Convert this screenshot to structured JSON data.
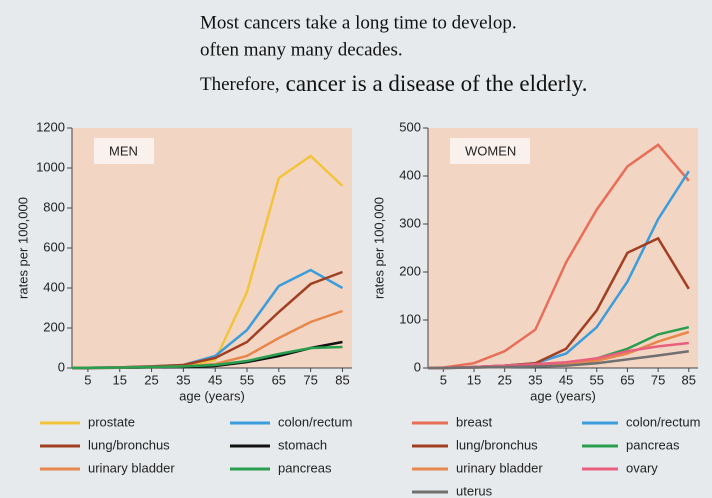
{
  "header": {
    "lines": [
      "Most cancers take a long time to develop.",
      "often many many decades."
    ],
    "therefore": "Therefore,",
    "emphasis": "cancer is a disease of the elderly."
  },
  "chart_data": [
    {
      "type": "line",
      "panel_label": "MEN",
      "xlabel": "age (years)",
      "ylabel": "rates per 100,000",
      "x": [
        0,
        5,
        15,
        25,
        35,
        45,
        55,
        65,
        75,
        85
      ],
      "xlim": [
        0,
        88
      ],
      "xticks": [
        5,
        15,
        25,
        35,
        45,
        55,
        65,
        75,
        85
      ],
      "ylim": [
        0,
        1200
      ],
      "yticks": [
        0,
        200,
        400,
        600,
        800,
        1000,
        1200
      ],
      "legend": "bottom",
      "series": [
        {
          "name": "prostate",
          "color": "#f2c43c",
          "values": [
            0,
            0,
            2,
            5,
            10,
            40,
            380,
            950,
            1060,
            910
          ]
        },
        {
          "name": "colon/rectum",
          "color": "#3b9ddb",
          "values": [
            0,
            1,
            3,
            8,
            15,
            60,
            190,
            410,
            490,
            400
          ]
        },
        {
          "name": "lung/bronchus",
          "color": "#a13f22",
          "values": [
            0,
            1,
            3,
            8,
            15,
            50,
            130,
            280,
            420,
            480
          ]
        },
        {
          "name": "stomach",
          "color": "#111111",
          "values": [
            0,
            0,
            1,
            3,
            5,
            10,
            30,
            60,
            100,
            130
          ]
        },
        {
          "name": "urinary bladder",
          "color": "#e8874b",
          "values": [
            0,
            1,
            2,
            5,
            8,
            20,
            60,
            150,
            230,
            285
          ]
        },
        {
          "name": "pancreas",
          "color": "#2a9e4f",
          "values": [
            0,
            1,
            2,
            5,
            8,
            15,
            35,
            70,
            100,
            105
          ]
        }
      ]
    },
    {
      "type": "line",
      "panel_label": "WOMEN",
      "xlabel": "age (years)",
      "ylabel": "rates per 100,000",
      "x": [
        0,
        5,
        15,
        25,
        35,
        45,
        55,
        65,
        75,
        85
      ],
      "xlim": [
        0,
        88
      ],
      "xticks": [
        5,
        15,
        25,
        35,
        45,
        55,
        65,
        75,
        85
      ],
      "ylim": [
        0,
        500
      ],
      "yticks": [
        0,
        100,
        200,
        300,
        400,
        500
      ],
      "legend": "bottom",
      "series": [
        {
          "name": "breast",
          "color": "#e86e58",
          "values": [
            0,
            1,
            10,
            35,
            80,
            220,
            330,
            420,
            465,
            390
          ]
        },
        {
          "name": "colon/rectum",
          "color": "#3b9ddb",
          "values": [
            0,
            0,
            2,
            5,
            10,
            30,
            85,
            180,
            310,
            410
          ]
        },
        {
          "name": "lung/bronchus",
          "color": "#a13f22",
          "values": [
            0,
            0,
            2,
            5,
            10,
            40,
            120,
            240,
            270,
            165
          ]
        },
        {
          "name": "pancreas",
          "color": "#2a9e4f",
          "values": [
            0,
            0,
            1,
            3,
            5,
            10,
            20,
            40,
            70,
            85
          ]
        },
        {
          "name": "urinary bladder",
          "color": "#e8874b",
          "values": [
            0,
            0,
            1,
            2,
            4,
            8,
            15,
            30,
            55,
            75
          ]
        },
        {
          "name": "ovary",
          "color": "#e8607e",
          "values": [
            0,
            0,
            2,
            5,
            8,
            12,
            20,
            35,
            45,
            52
          ]
        },
        {
          "name": "uterus",
          "color": "#707070",
          "values": [
            0,
            0,
            1,
            2,
            3,
            5,
            10,
            18,
            26,
            35
          ]
        }
      ]
    }
  ]
}
